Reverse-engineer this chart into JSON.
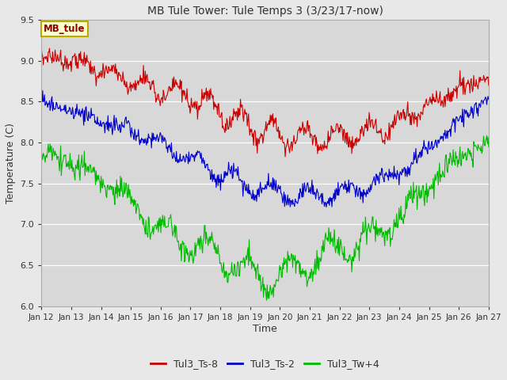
{
  "title": "MB Tule Tower: Tule Temps 3 (3/23/17-now)",
  "xlabel": "Time",
  "ylabel": "Temperature (C)",
  "ylim": [
    6.0,
    9.5
  ],
  "bg_color": "#e8e8e8",
  "plot_bg_color": "#d8d8d8",
  "legend_label_box": "MB_tule",
  "legend_box_color": "#ffffcc",
  "legend_box_edge": "#bbaa00",
  "legend_box_text_color": "#880000",
  "series": [
    {
      "label": "Tul3_Ts-8",
      "color": "#cc0000"
    },
    {
      "label": "Tul3_Ts-2",
      "color": "#0000cc"
    },
    {
      "label": "Tul3_Tw+4",
      "color": "#00bb00"
    }
  ],
  "xtick_labels": [
    "Jan 12",
    "Jan 13",
    "Jan 14",
    "Jan 15",
    "Jan 16",
    "Jan 17",
    "Jan 18",
    "Jan 19",
    "Jan 20",
    "Jan 21",
    "Jan 22",
    "Jan 23",
    "Jan 24",
    "Jan 25",
    "Jan 26",
    "Jan 27"
  ],
  "n_days": 15,
  "points_per_day": 48,
  "yticks": [
    6.0,
    6.5,
    7.0,
    7.5,
    8.0,
    8.5,
    9.0,
    9.5
  ]
}
